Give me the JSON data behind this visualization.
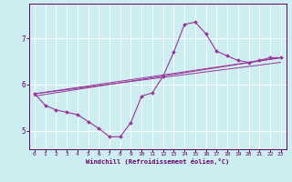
{
  "bg_color": "#cceef0",
  "line_color": "#993399",
  "grid_color": "#ffffff",
  "axis_color": "#660066",
  "xlabel": "Windchill (Refroidissement éolien,°C)",
  "xlim": [
    -0.5,
    23.5
  ],
  "ylim": [
    4.6,
    7.75
  ],
  "yticks": [
    5,
    6,
    7
  ],
  "xticks": [
    0,
    1,
    2,
    3,
    4,
    5,
    6,
    7,
    8,
    9,
    10,
    11,
    12,
    13,
    14,
    15,
    16,
    17,
    18,
    19,
    20,
    21,
    22,
    23
  ],
  "main_x": [
    0,
    1,
    2,
    3,
    4,
    5,
    6,
    7,
    8,
    9,
    10,
    11,
    12,
    13,
    14,
    15,
    16,
    17,
    18,
    19,
    20,
    21,
    22,
    23
  ],
  "main_y": [
    5.8,
    5.55,
    5.45,
    5.4,
    5.35,
    5.2,
    5.05,
    4.87,
    4.87,
    5.18,
    5.75,
    5.82,
    6.18,
    6.7,
    7.3,
    7.35,
    7.1,
    6.72,
    6.62,
    6.52,
    6.48,
    6.52,
    6.58,
    6.58
  ],
  "straight_lines": [
    {
      "x": [
        0,
        23
      ],
      "y": [
        5.8,
        6.58
      ]
    },
    {
      "x": [
        0,
        23
      ],
      "y": [
        5.8,
        6.48
      ]
    },
    {
      "x": [
        0,
        23
      ],
      "y": [
        5.75,
        6.58
      ]
    }
  ],
  "figsize": [
    3.2,
    2.0
  ],
  "dpi": 100
}
